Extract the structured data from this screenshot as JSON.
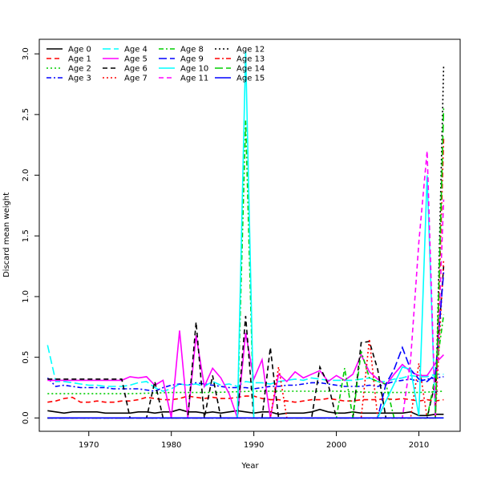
{
  "chart_data": {
    "type": "line",
    "title": "",
    "xlabel": "Year",
    "ylabel": "Discard mean weight",
    "xlim": [
      1964,
      2015
    ],
    "ylim": [
      -0.11,
      3.12
    ],
    "xticks": [
      1970,
      1980,
      1990,
      2000,
      2010
    ],
    "yticks": [
      0.0,
      0.5,
      1.0,
      1.5,
      2.0,
      2.5,
      3.0
    ],
    "xtick_labels": [
      "1970",
      "1980",
      "1990",
      "2000",
      "2010"
    ],
    "ytick_labels": [
      "0.0",
      "0.5",
      "1.0",
      "1.5",
      "2.0",
      "2.5",
      "3.0"
    ],
    "grid": false,
    "legend_position": "top-left",
    "series": [
      {
        "name": "Age 0",
        "color": "#000000",
        "dash": "solid",
        "x": [
          1965,
          1966,
          1967,
          1968,
          1969,
          1970,
          1971,
          1972,
          1973,
          1974,
          1975,
          1976,
          1977,
          1978,
          1979,
          1980,
          1981,
          1982,
          1983,
          1984,
          1985,
          1986,
          1987,
          1988,
          1989,
          1990,
          1991,
          1992,
          1993,
          1994,
          1995,
          1996,
          1997,
          1998,
          1999,
          2000,
          2001,
          2002,
          2003,
          2004,
          2005,
          2006,
          2007,
          2008,
          2009,
          2010,
          2011,
          2012,
          2013
        ],
        "values": [
          0.06,
          0.05,
          0.04,
          0.05,
          0.05,
          0.05,
          0.05,
          0.04,
          0.04,
          0.04,
          0.04,
          0.05,
          0.05,
          0.04,
          0.05,
          0.05,
          0.07,
          0.05,
          0.05,
          0.04,
          0.05,
          0.04,
          0.05,
          0.06,
          0.05,
          0.04,
          0.05,
          0.05,
          0.03,
          0.04,
          0.04,
          0.04,
          0.05,
          0.07,
          0.05,
          0.04,
          0.04,
          0.05,
          0.04,
          0.04,
          0.04,
          0.04,
          0.04,
          0.04,
          0.05,
          0.02,
          0.02,
          0.03,
          0.03
        ]
      },
      {
        "name": "Age 1",
        "color": "#ff0000",
        "dash": "dashed",
        "x": [
          1965,
          1966,
          1967,
          1968,
          1969,
          1970,
          1971,
          1972,
          1973,
          1974,
          1975,
          1976,
          1977,
          1978,
          1979,
          1980,
          1981,
          1982,
          1983,
          1984,
          1985,
          1986,
          1987,
          1988,
          1989,
          1990,
          1991,
          1992,
          1993,
          1994,
          1995,
          1996,
          1997,
          1998,
          1999,
          2000,
          2001,
          2002,
          2003,
          2004,
          2005,
          2006,
          2007,
          2008,
          2009,
          2010,
          2011,
          2012,
          2013
        ],
        "values": [
          0.13,
          0.14,
          0.16,
          0.17,
          0.13,
          0.13,
          0.14,
          0.13,
          0.13,
          0.14,
          0.14,
          0.15,
          0.17,
          0.16,
          0.15,
          0.15,
          0.16,
          0.18,
          0.17,
          0.16,
          0.17,
          0.16,
          0.16,
          0.17,
          0.18,
          0.18,
          0.16,
          0.15,
          0.15,
          0.14,
          0.13,
          0.14,
          0.15,
          0.15,
          0.16,
          0.15,
          0.14,
          0.14,
          0.15,
          0.15,
          0.15,
          0.16,
          0.15,
          0.16,
          0.15,
          0.14,
          0.15,
          0.14,
          0.15
        ]
      },
      {
        "name": "Age 2",
        "color": "#00cd00",
        "dash": "dotted",
        "x": [
          1965,
          1970,
          1975,
          1980,
          1985,
          1990,
          1995,
          2000,
          2005,
          2010,
          2013
        ],
        "values": [
          0.2,
          0.2,
          0.2,
          0.21,
          0.21,
          0.22,
          0.22,
          0.22,
          0.21,
          0.21,
          0.22
        ]
      },
      {
        "name": "Age 3",
        "color": "#0000ff",
        "dash": "dashdot",
        "x": [
          1965,
          1966,
          1967,
          1968,
          1969,
          1970,
          1971,
          1972,
          1973,
          1974,
          1975,
          1976,
          1977,
          1978,
          1979,
          1980,
          1981,
          1982,
          1983,
          1984,
          1985,
          1986,
          1987,
          1988,
          1989,
          1990,
          1991,
          1992,
          1993,
          1994,
          1995,
          1996,
          1997,
          1998,
          1999,
          2000,
          2001,
          2002,
          2003,
          2004,
          2005,
          2006,
          2007,
          2008,
          2009,
          2010,
          2011,
          2012,
          2013
        ],
        "values": [
          0.33,
          0.26,
          0.27,
          0.26,
          0.25,
          0.25,
          0.25,
          0.25,
          0.24,
          0.24,
          0.24,
          0.24,
          0.23,
          0.22,
          0.25,
          0.27,
          0.28,
          0.27,
          0.29,
          0.28,
          0.27,
          0.26,
          0.25,
          0.25,
          0.25,
          0.24,
          0.25,
          0.26,
          0.26,
          0.27,
          0.27,
          0.28,
          0.29,
          0.29,
          0.28,
          0.27,
          0.26,
          0.26,
          0.26,
          0.27,
          0.26,
          0.28,
          0.3,
          0.31,
          0.32,
          0.3,
          0.32,
          0.33,
          0.34
        ]
      },
      {
        "name": "Age 4",
        "color": "#00ffff",
        "dash": "longdash",
        "x": [
          1965,
          1966,
          1967,
          1968,
          1969,
          1970,
          1971,
          1972,
          1973,
          1974,
          1975,
          1976,
          1977,
          1978,
          1979,
          1980,
          1981,
          1982,
          1983,
          1984,
          1985,
          1986,
          1987,
          1988,
          1989,
          1990,
          1991,
          1992,
          1993,
          1994,
          1995,
          1996,
          1997,
          1998,
          1999,
          2000,
          2001,
          2002,
          2003,
          2004,
          2005,
          2006,
          2007,
          2008,
          2009,
          2010,
          2011,
          2012,
          2013
        ],
        "values": [
          0.6,
          0.3,
          0.3,
          0.29,
          0.28,
          0.27,
          0.27,
          0.26,
          0.26,
          0.26,
          0.27,
          0.29,
          0.3,
          0.25,
          0.22,
          0.24,
          0.28,
          0.27,
          0.28,
          0.26,
          0.3,
          0.27,
          0.28,
          0.26,
          0.3,
          0.29,
          0.29,
          0.28,
          0.3,
          0.31,
          0.32,
          0.31,
          0.33,
          0.32,
          0.31,
          0.31,
          0.31,
          0.31,
          0.32,
          0.33,
          0.3,
          0.3,
          0.32,
          0.33,
          0.35,
          0.34,
          0.34,
          0.36,
          0.36
        ]
      },
      {
        "name": "Age 5",
        "color": "#ff00ff",
        "dash": "solid",
        "x": [
          1965,
          1966,
          1967,
          1968,
          1969,
          1970,
          1971,
          1972,
          1973,
          1974,
          1975,
          1976,
          1977,
          1978,
          1979,
          1980,
          1981,
          1982,
          1983,
          1984,
          1985,
          1986,
          1987,
          1988,
          1989,
          1990,
          1991,
          1992,
          1993,
          1994,
          1995,
          1996,
          1997,
          1998,
          1999,
          2000,
          2001,
          2002,
          2003,
          2004,
          2005,
          2006,
          2007,
          2008,
          2009,
          2010,
          2011,
          2012,
          2013
        ],
        "values": [
          0.31,
          0.31,
          0.31,
          0.31,
          0.31,
          0.31,
          0.31,
          0.31,
          0.31,
          0.31,
          0.34,
          0.33,
          0.34,
          0.27,
          0.31,
          0.0,
          0.72,
          0.0,
          0.68,
          0.26,
          0.41,
          0.33,
          0.2,
          0.0,
          0.7,
          0.32,
          0.48,
          0.0,
          0.36,
          0.3,
          0.38,
          0.33,
          0.36,
          0.39,
          0.3,
          0.35,
          0.31,
          0.36,
          0.52,
          0.38,
          0.32,
          0.27,
          0.36,
          0.44,
          0.38,
          0.35,
          0.35,
          0.45,
          0.52
        ]
      },
      {
        "name": "Age 6",
        "color": "#000000",
        "dash": "dashed",
        "x": [
          1965,
          1966,
          1967,
          1968,
          1969,
          1970,
          1971,
          1972,
          1973,
          1974,
          1975,
          1976,
          1977,
          1978,
          1979,
          1980,
          1981,
          1982,
          1983,
          1984,
          1985,
          1986,
          1987,
          1988,
          1989,
          1990,
          1991,
          1992,
          1993,
          1994,
          1995,
          1996,
          1997,
          1998,
          1999,
          2000,
          2001,
          2002,
          2003,
          2004,
          2005,
          2006,
          2007,
          2008,
          2009,
          2010,
          2011,
          2012,
          2013
        ],
        "values": [
          0.32,
          0.32,
          0.32,
          0.32,
          0.32,
          0.32,
          0.32,
          0.32,
          0.32,
          0.32,
          0.0,
          0.0,
          0.0,
          0.3,
          0.0,
          0.0,
          0.0,
          0.0,
          0.79,
          0.0,
          0.35,
          0.0,
          0.0,
          0.0,
          0.84,
          0.0,
          0.0,
          0.58,
          0.0,
          0.0,
          0.0,
          0.0,
          0.0,
          0.42,
          0.28,
          0.0,
          0.0,
          0.0,
          0.62,
          0.63,
          0.4,
          0.0,
          0.0,
          0.0,
          0.0,
          0.0,
          0.0,
          0.3,
          1.25
        ]
      },
      {
        "name": "Age 7",
        "color": "#ff0000",
        "dash": "dotted",
        "x": [
          1965,
          1966,
          1967,
          1968,
          1969,
          1970,
          1971,
          1972,
          1973,
          1974,
          1975,
          1976,
          1977,
          1978,
          1979,
          1980,
          1981,
          1982,
          1983,
          1984,
          1985,
          1986,
          1987,
          1988,
          1989,
          1990,
          1991,
          1992,
          1993,
          1994,
          1995,
          1996,
          1997,
          1998,
          1999,
          2000,
          2001,
          2002,
          2003,
          2004,
          2005,
          2006,
          2007,
          2008,
          2009,
          2010,
          2011,
          2012,
          2013
        ],
        "values": [
          0.0,
          0.0,
          0.0,
          0.0,
          0.0,
          0.0,
          0.0,
          0.0,
          0.0,
          0.0,
          0.0,
          0.0,
          0.0,
          0.0,
          0.0,
          0.0,
          0.0,
          0.0,
          0.0,
          0.0,
          0.0,
          0.0,
          0.0,
          0.0,
          0.0,
          0.0,
          0.0,
          0.0,
          0.42,
          0.0,
          0.0,
          0.0,
          0.0,
          0.0,
          0.0,
          0.0,
          0.0,
          0.0,
          0.0,
          0.65,
          0.0,
          0.0,
          0.0,
          0.0,
          0.0,
          0.45,
          0.0,
          0.0,
          1.3
        ]
      },
      {
        "name": "Age 8",
        "color": "#00cd00",
        "dash": "dashdot",
        "x": [
          1965,
          1970,
          1975,
          1980,
          1985,
          1988,
          1989,
          1990,
          1995,
          2000,
          2001,
          2002,
          2003,
          2004,
          2005,
          2006,
          2007,
          2008,
          2009,
          2010,
          2011,
          2012,
          2013
        ],
        "values": [
          0.0,
          0.0,
          0.0,
          0.0,
          0.0,
          0.0,
          2.45,
          0.0,
          0.0,
          0.0,
          0.41,
          0.0,
          0.55,
          0.33,
          0.3,
          0.28,
          0.0,
          0.0,
          0.0,
          0.0,
          0.0,
          0.35,
          0.85
        ]
      },
      {
        "name": "Age 9",
        "color": "#0000ff",
        "dash": "longdash",
        "x": [
          1965,
          1970,
          1975,
          1980,
          1985,
          1990,
          1995,
          2000,
          2005,
          2006,
          2007,
          2008,
          2009,
          2010,
          2011,
          2012,
          2013
        ],
        "values": [
          0.0,
          0.0,
          0.0,
          0.0,
          0.0,
          0.0,
          0.0,
          0.0,
          0.0,
          0.28,
          0.4,
          0.58,
          0.4,
          0.32,
          0.3,
          0.36,
          1.2
        ]
      },
      {
        "name": "Age 10",
        "color": "#00ffff",
        "dash": "solid",
        "x": [
          1965,
          1970,
          1975,
          1980,
          1985,
          1988,
          1989,
          1990,
          1995,
          2000,
          2005,
          2008,
          2009,
          2010,
          2011,
          2012,
          2013
        ],
        "values": [
          0.0,
          0.0,
          0.0,
          0.0,
          0.0,
          0.0,
          3.02,
          0.0,
          0.0,
          0.0,
          0.0,
          0.42,
          0.4,
          0.02,
          2.0,
          0.0,
          0.0
        ]
      },
      {
        "name": "Age 11",
        "color": "#ff00ff",
        "dash": "dashed",
        "x": [
          1965,
          1970,
          1975,
          1980,
          1985,
          1990,
          1995,
          2000,
          2005,
          2008,
          2009,
          2010,
          2011,
          2012,
          2013
        ],
        "values": [
          0.0,
          0.0,
          0.0,
          0.0,
          0.0,
          0.0,
          0.0,
          0.0,
          0.0,
          0.0,
          0.48,
          1.45,
          2.2,
          0.0,
          1.8
        ]
      },
      {
        "name": "Age 12",
        "color": "#000000",
        "dash": "dotted",
        "x": [
          1965,
          1970,
          1975,
          1980,
          1985,
          1990,
          1995,
          2000,
          2005,
          2010,
          2011,
          2012,
          2013
        ],
        "values": [
          0.0,
          0.0,
          0.0,
          0.0,
          0.0,
          0.0,
          0.0,
          0.0,
          0.0,
          0.0,
          0.0,
          0.0,
          2.9
        ]
      },
      {
        "name": "Age 13",
        "color": "#ff0000",
        "dash": "dashdot",
        "x": [
          1965,
          1970,
          1975,
          1980,
          1985,
          1990,
          1995,
          2000,
          2005,
          2010,
          2011,
          2012,
          2013
        ],
        "values": [
          0.0,
          0.0,
          0.0,
          0.0,
          0.0,
          0.0,
          0.0,
          0.0,
          0.0,
          0.0,
          0.0,
          0.0,
          2.3
        ]
      },
      {
        "name": "Age 14",
        "color": "#00cd00",
        "dash": "longdash",
        "x": [
          1965,
          1970,
          1975,
          1980,
          1985,
          1990,
          1995,
          2000,
          2005,
          2010,
          2011,
          2012,
          2013
        ],
        "values": [
          0.0,
          0.0,
          0.0,
          0.0,
          0.0,
          0.0,
          0.0,
          0.0,
          0.0,
          0.0,
          0.0,
          0.0,
          2.55
        ]
      },
      {
        "name": "Age 15",
        "color": "#0000ff",
        "dash": "solid",
        "x": [
          1965,
          1970,
          1975,
          1980,
          1985,
          1990,
          1995,
          2000,
          2005,
          2010,
          2013
        ],
        "values": [
          0.0,
          0.0,
          0.0,
          0.0,
          0.0,
          0.0,
          0.0,
          0.0,
          0.0,
          0.0,
          0.0
        ]
      }
    ]
  }
}
